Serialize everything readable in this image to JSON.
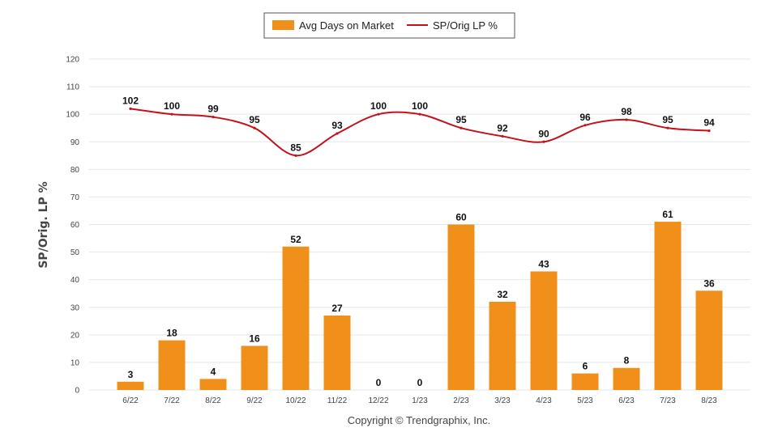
{
  "chart_data": {
    "type": "bar",
    "categories": [
      "6/22",
      "7/22",
      "8/22",
      "9/22",
      "10/22",
      "11/22",
      "12/22",
      "1/23",
      "2/23",
      "3/23",
      "4/23",
      "5/23",
      "6/23",
      "7/23",
      "8/23"
    ],
    "series": [
      {
        "name": "Avg Days on Market",
        "type": "bar",
        "color": "#f0901a",
        "values": [
          3,
          18,
          4,
          16,
          52,
          27,
          0,
          0,
          60,
          32,
          43,
          6,
          8,
          61,
          36
        ]
      },
      {
        "name": "SP/Orig LP %",
        "type": "line",
        "color": "#c0141a",
        "values": [
          102,
          100,
          99,
          95,
          85,
          93,
          100,
          100,
          95,
          92,
          90,
          96,
          98,
          95,
          94
        ]
      }
    ],
    "ylabel": "SP/Orig. LP %",
    "ylim": [
      0,
      120
    ],
    "yticks": [
      0,
      10,
      20,
      30,
      40,
      50,
      60,
      70,
      80,
      90,
      100,
      110,
      120
    ],
    "grid": true,
    "legend_position": "top-center"
  },
  "copyright": "Copyright © Trendgraphix, Inc."
}
